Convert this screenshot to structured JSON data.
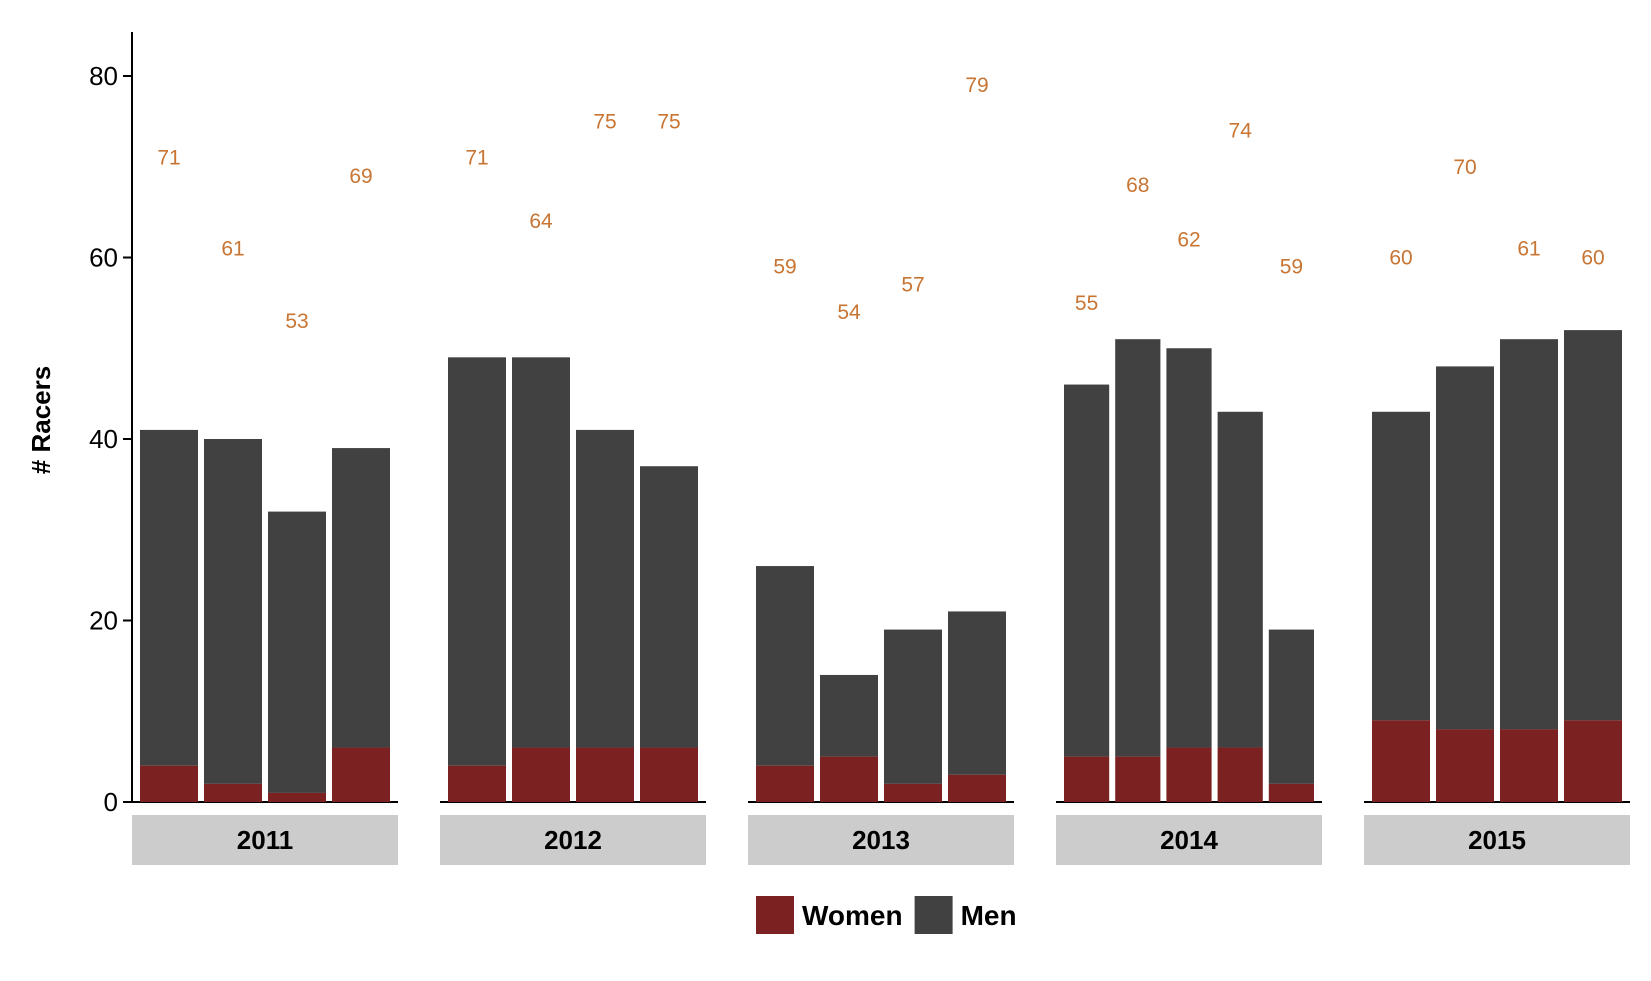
{
  "chart_data": {
    "type": "bar",
    "stacked": true,
    "faceted_by": "year",
    "ylabel": "# Racers",
    "xlabel": "",
    "ylim": [
      0,
      85
    ],
    "yticks": [
      0,
      20,
      40,
      60,
      80
    ],
    "grid": false,
    "legend_position": "bottom",
    "colors": {
      "Women": "#7b2121",
      "Men": "#414141",
      "value_label": "#c87533",
      "strip": "#cccccc"
    },
    "series_order": [
      "Women",
      "Men"
    ],
    "facets": [
      {
        "label": "2011",
        "bars": [
          {
            "women": 4,
            "men": 37,
            "label": "71"
          },
          {
            "women": 2,
            "men": 38,
            "label": "61"
          },
          {
            "women": 1,
            "men": 31,
            "label": "53"
          },
          {
            "women": 6,
            "men": 33,
            "label": "69"
          }
        ]
      },
      {
        "label": "2012",
        "bars": [
          {
            "women": 4,
            "men": 45,
            "label": "71"
          },
          {
            "women": 6,
            "men": 43,
            "label": "64"
          },
          {
            "women": 6,
            "men": 35,
            "label": "75"
          },
          {
            "women": 6,
            "men": 31,
            "label": "75"
          }
        ]
      },
      {
        "label": "2013",
        "bars": [
          {
            "women": 4,
            "men": 22,
            "label": "59"
          },
          {
            "women": 5,
            "men": 9,
            "label": "54"
          },
          {
            "women": 2,
            "men": 17,
            "label": "57"
          },
          {
            "women": 3,
            "men": 18,
            "label": "79"
          }
        ]
      },
      {
        "label": "2014",
        "bars": [
          {
            "women": 5,
            "men": 41,
            "label": "55"
          },
          {
            "women": 5,
            "men": 46,
            "label": "68"
          },
          {
            "women": 6,
            "men": 44,
            "label": "62"
          },
          {
            "women": 6,
            "men": 37,
            "label": "74"
          },
          {
            "women": 2,
            "men": 17,
            "label": "59"
          }
        ]
      },
      {
        "label": "2015",
        "bars": [
          {
            "women": 9,
            "men": 34,
            "label": "60"
          },
          {
            "women": 8,
            "men": 40,
            "label": "70"
          },
          {
            "women": 8,
            "men": 43,
            "label": "61"
          },
          {
            "women": 9,
            "men": 43,
            "label": "60"
          }
        ]
      }
    ]
  }
}
